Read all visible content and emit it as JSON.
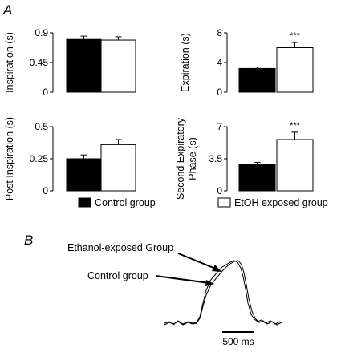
{
  "panels": {
    "a": "A",
    "b": "B"
  },
  "chart_data": [
    {
      "type": "bar",
      "panel": "A",
      "categories": [
        "Control group",
        "EtOH exposed group"
      ],
      "values": [
        0.8,
        0.79
      ],
      "errors": [
        0.05,
        0.05
      ],
      "ylabel": "Inspiration (s)",
      "yticks": [
        "0",
        "0.45",
        "0.9"
      ],
      "ylim": [
        0,
        0.9
      ],
      "significance": ""
    },
    {
      "type": "bar",
      "panel": "A",
      "categories": [
        "Control group",
        "EtOH exposed group"
      ],
      "values": [
        3.2,
        6.0
      ],
      "errors": [
        0.2,
        0.7
      ],
      "ylabel": "Expiration (s)",
      "yticks": [
        "0",
        "4",
        "8"
      ],
      "ylim": [
        0,
        8
      ],
      "significance": "***"
    },
    {
      "type": "bar",
      "panel": "A",
      "categories": [
        "Control group",
        "EtOH exposed group"
      ],
      "values": [
        0.25,
        0.36
      ],
      "errors": [
        0.03,
        0.04
      ],
      "ylabel": "Post Inspiration (s)",
      "yticks": [
        "0",
        "0.25",
        "0.5"
      ],
      "ylim": [
        0,
        0.5
      ],
      "significance": ""
    },
    {
      "type": "bar",
      "panel": "A",
      "categories": [
        "Control group",
        "EtOH exposed group"
      ],
      "values": [
        2.85,
        5.6
      ],
      "errors": [
        0.25,
        0.8
      ],
      "ylabel_lines": [
        "Second Expiratory",
        "Phase (s)"
      ],
      "yticks": [
        "0",
        "3.5",
        "7"
      ],
      "ylim": [
        0,
        7
      ],
      "significance": "***"
    }
  ],
  "legend": {
    "control": "Control group",
    "etoh": "EtOH exposed group",
    "control_color": "#000000",
    "etoh_color": "#ffffff"
  },
  "traces": {
    "label_ethanol": "Ethanol-exposed Group",
    "label_control": "Control group",
    "scale_bar": "500 ms"
  }
}
